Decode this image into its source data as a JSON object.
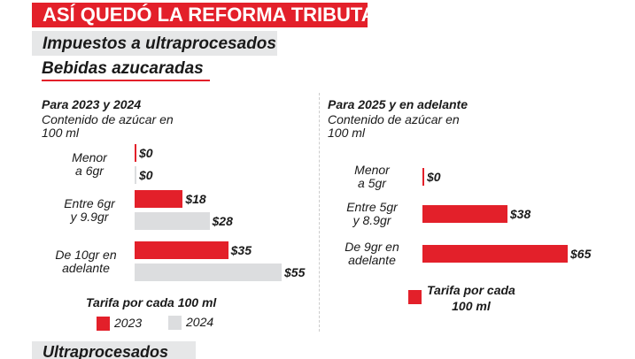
{
  "header": {
    "title": "ASÍ QUEDÓ LA REFORMA TRIBUTARIA",
    "subtitle": "Impuestos a ultraprocesados",
    "section": "Bebidas azucaradas",
    "next_section": "Ultraprocesados"
  },
  "colors": {
    "red": "#e3202a",
    "gray": "#dcdddf"
  },
  "chart_data": [
    {
      "type": "bar",
      "orientation": "horizontal",
      "title": "Para 2023 y 2024",
      "subtitle": "Contenido de azúcar en 100 ml",
      "categories": [
        [
          "Menor",
          "a 6gr"
        ],
        [
          "Entre 6gr",
          "y 9.9gr"
        ],
        [
          "De 10gr en",
          "adelante"
        ]
      ],
      "series": [
        {
          "name": "2023",
          "color": "#e3202a",
          "values": [
            0,
            18,
            35
          ],
          "labels": [
            "$0",
            "$18",
            "$35"
          ]
        },
        {
          "name": "2024",
          "color": "#dcdddf",
          "values": [
            0,
            28,
            55
          ],
          "labels": [
            "$0",
            "$28",
            "$55"
          ]
        }
      ],
      "legend_title": "Tarifa por cada 100 ml",
      "legend": "bottom"
    },
    {
      "type": "bar",
      "orientation": "horizontal",
      "title": "Para 2025 y en adelante",
      "subtitle": "Contenido de azúcar en 100 ml",
      "categories": [
        [
          "Menor",
          "a 5gr"
        ],
        [
          "Entre 5gr",
          "y 8.9gr"
        ],
        [
          "De 9gr en",
          "adelante"
        ]
      ],
      "series": [
        {
          "color": "#e3202a",
          "values": [
            0,
            38,
            65
          ],
          "labels": [
            "$0",
            "$38",
            "$65"
          ]
        }
      ],
      "legend_title": [
        "Tarifa por cada",
        "100 ml"
      ],
      "legend": "bottom"
    }
  ]
}
